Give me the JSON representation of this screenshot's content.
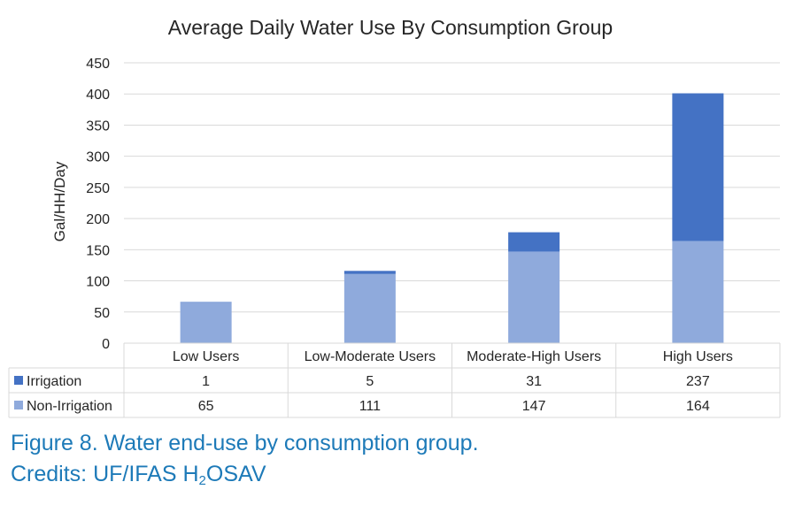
{
  "chart_data": {
    "type": "bar",
    "stacked": true,
    "title": "Average Daily Water Use By Consumption Group",
    "xlabel": "",
    "ylabel": "Gal/HH/Day",
    "ylim": [
      0,
      450
    ],
    "yticks": [
      0,
      50,
      100,
      150,
      200,
      250,
      300,
      350,
      400,
      450
    ],
    "grid": true,
    "legend": "data-table",
    "categories": [
      "Low Users",
      "Low-Moderate Users",
      "Moderate-High Users",
      "High Users"
    ],
    "series": [
      {
        "name": "Irrigation",
        "values": [
          1,
          5,
          31,
          237
        ],
        "color": "#4472c4"
      },
      {
        "name": "Non-Irrigation",
        "values": [
          65,
          111,
          147,
          164
        ],
        "color": "#8faadc"
      }
    ]
  },
  "caption": {
    "figure": "Figure 8. Water end-use by consumption group.",
    "credits_prefix": "Credits: UF/IFAS H",
    "credits_sub": "2",
    "credits_suffix": "OSAV"
  },
  "colors": {
    "irrigation": "#4472c4",
    "non_irrigation": "#8faadc",
    "grid": "#d9d9d9",
    "caption": "#1d7ab8",
    "text": "#262626"
  }
}
